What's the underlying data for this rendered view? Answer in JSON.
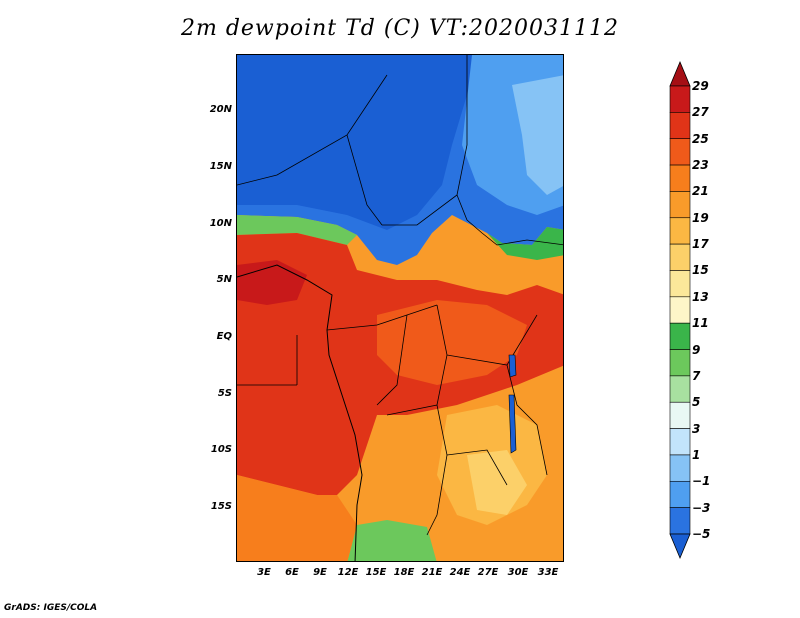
{
  "title": "2m dewpoint Td (C) VT:2020031112",
  "credit": "GrADS: IGES/COLA",
  "map": {
    "lat_labels": [
      "20N",
      "15N",
      "10N",
      "5N",
      "EQ",
      "5S",
      "10S",
      "15S"
    ],
    "lon_labels": [
      "3E",
      "6E",
      "9E",
      "12E",
      "15E",
      "18E",
      "21E",
      "24E",
      "27E",
      "30E",
      "33E"
    ],
    "lat_range": [
      -20,
      25
    ],
    "lon_range": [
      0,
      35
    ]
  },
  "colorbar": {
    "labels": [
      "29",
      "27",
      "25",
      "23",
      "21",
      "19",
      "17",
      "15",
      "13",
      "11",
      "9",
      "7",
      "5",
      "3",
      "1",
      "−1",
      "−3",
      "−5"
    ],
    "colors": [
      "#a50f15",
      "#c8191a",
      "#e03418",
      "#f05a1a",
      "#f77e1c",
      "#f99b2a",
      "#fbb743",
      "#fcd069",
      "#fbe89a",
      "#fdf6c8",
      "#3ab54a",
      "#6cc85c",
      "#a8e0a0",
      "#e9f8f4",
      "#c2e4fb",
      "#86c3f5",
      "#4f9ff0",
      "#2a73e0",
      "#1a5fd3"
    ]
  }
}
